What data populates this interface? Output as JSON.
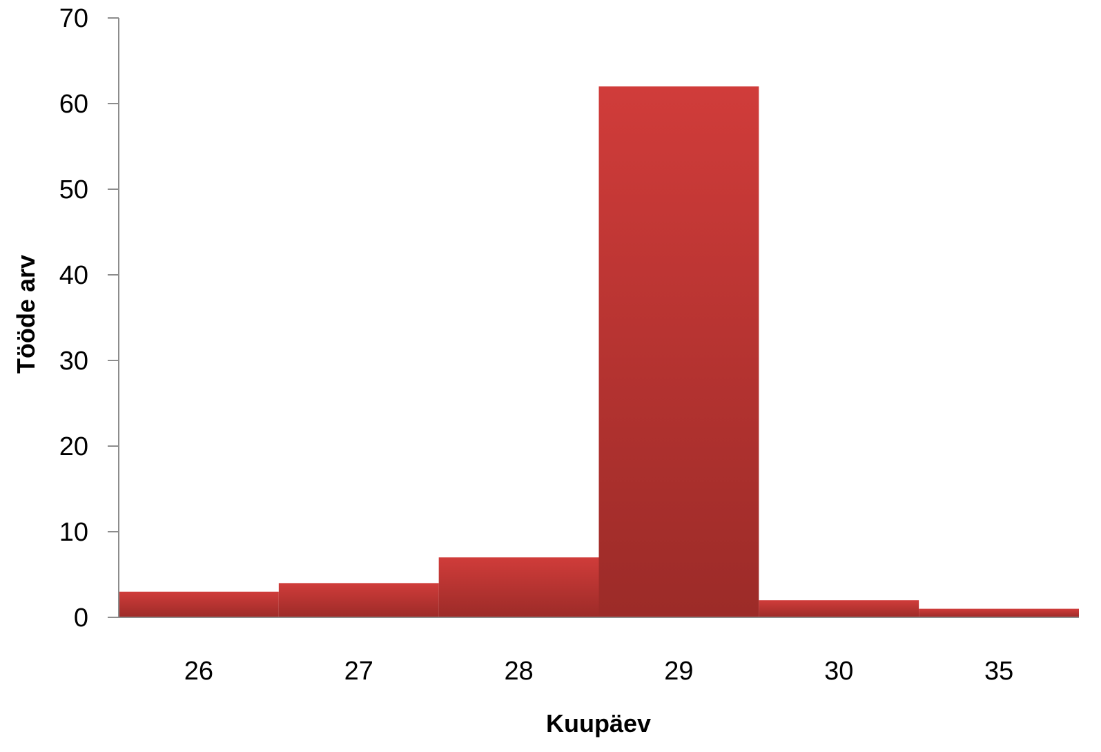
{
  "chart_data": {
    "type": "bar",
    "categories": [
      "26",
      "27",
      "28",
      "29",
      "30",
      "35"
    ],
    "values": [
      3,
      4,
      7,
      62,
      2,
      1
    ],
    "xlabel": "Kuupäev",
    "ylabel": "Tööde arv",
    "ylim": [
      0,
      70
    ],
    "yticks": [
      0,
      10,
      20,
      30,
      40,
      50,
      60,
      70
    ],
    "grid": false,
    "legend": "none",
    "bar_gap": 0,
    "colors": {
      "bar_top": "#d03c3a",
      "bar_bottom": "#9c2b28",
      "axis": "#8c8c8c"
    }
  }
}
